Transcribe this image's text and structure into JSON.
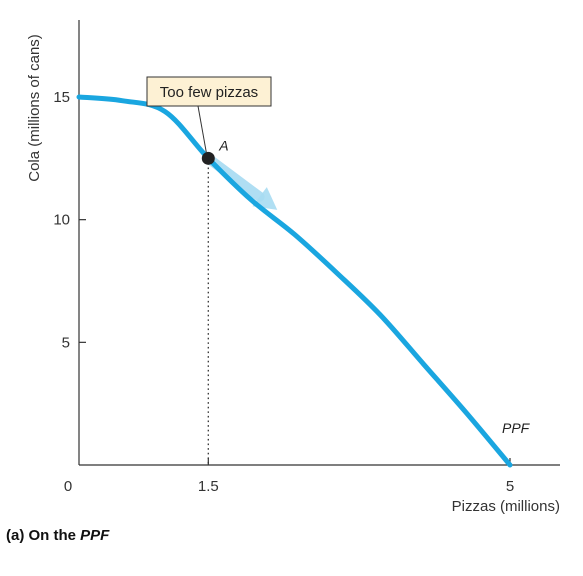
{
  "chart_data": {
    "type": "line",
    "title": "",
    "caption_prefix": "(a) On the ",
    "caption_emphasis": "PPF",
    "xlabel": "Pizzas (millions)",
    "ylabel": "Cola (millions of cans)",
    "xlim": [
      0,
      5.5
    ],
    "ylim": [
      0,
      18
    ],
    "x_ticks": [
      {
        "value": 0,
        "label": "0"
      },
      {
        "value": 1.5,
        "label": "1.5"
      },
      {
        "value": 5,
        "label": "5"
      }
    ],
    "y_ticks": [
      {
        "value": 5,
        "label": "5"
      },
      {
        "value": 10,
        "label": "10"
      },
      {
        "value": 15,
        "label": "15"
      }
    ],
    "grid": false,
    "series": [
      {
        "name": "PPF",
        "color": "#1aa6e0",
        "x": [
          0,
          0.5,
          1,
          1.5,
          2,
          2.5,
          3,
          3.5,
          4,
          4.5,
          5
        ],
        "y": [
          15,
          14.85,
          14.4,
          12.5,
          10.8,
          9.4,
          7.8,
          6.1,
          4.1,
          2.1,
          0
        ]
      }
    ],
    "point": {
      "label": "A",
      "x": 1.5,
      "y": 12.5,
      "color": "#222222"
    },
    "annotation": {
      "text": "Too few pizzas",
      "box_color": "#fdf1d4"
    },
    "arrow": {
      "from_x": 1.5,
      "from_y": 12.5,
      "to_x": 2.3,
      "to_y": 10.4,
      "color": "#a7dbf2"
    }
  }
}
